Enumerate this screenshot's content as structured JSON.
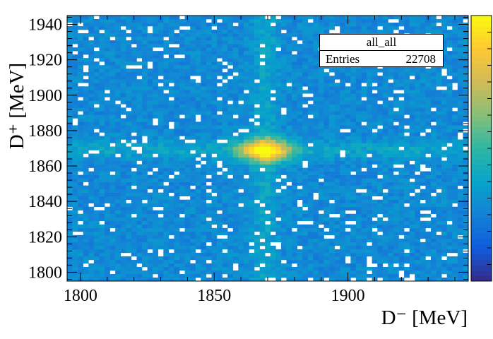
{
  "chart_data": {
    "type": "heatmap",
    "title": "",
    "xlabel": "D⁻ [MeV]",
    "ylabel": "D⁺ [MeV]",
    "xlim": [
      1795,
      1945
    ],
    "ylim": [
      1795,
      1945
    ],
    "x_ticks": [
      1800,
      1850,
      1900
    ],
    "y_ticks": [
      1800,
      1820,
      1840,
      1860,
      1880,
      1900,
      1920,
      1940
    ],
    "bins": 75,
    "bin_width_mev": 2,
    "peak": {
      "x": 1869,
      "y": 1869,
      "relative_density": 1.0
    },
    "background_relative_density": 0.28,
    "band_relative_density": 0.38,
    "colormap": [
      "#352a87",
      "#0f5cdd",
      "#1481d6",
      "#06a4ca",
      "#2eb7a4",
      "#87bf77",
      "#d1bb59",
      "#fec832",
      "#f9fb0e"
    ],
    "legend": {
      "title": "all_all",
      "entries_label": "Entries",
      "entries_value": "22708"
    },
    "grid": false
  }
}
